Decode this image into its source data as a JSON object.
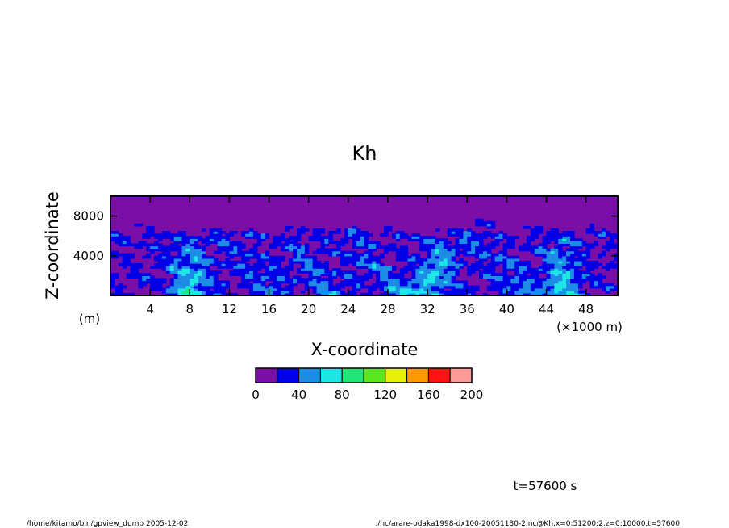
{
  "chart_data": {
    "type": "heatmap",
    "title": "Kh",
    "xlabel": "X-coordinate",
    "ylabel": "Z-coordinate",
    "x_unit": "(×1000 m)",
    "y_unit": "(m)",
    "xlim": [
      0,
      51.2
    ],
    "ylim": [
      0,
      10000
    ],
    "x_ticks": [
      "4",
      "8",
      "12",
      "16",
      "20",
      "24",
      "28",
      "32",
      "36",
      "40",
      "44",
      "48"
    ],
    "x_tick_values": [
      4,
      8,
      12,
      16,
      20,
      24,
      28,
      32,
      36,
      40,
      44,
      48
    ],
    "y_ticks": [
      "4000",
      "8000"
    ],
    "y_tick_values": [
      4000,
      8000
    ],
    "colorbar": {
      "levels": [
        0,
        20,
        40,
        60,
        80,
        100,
        120,
        140,
        160,
        180,
        200
      ],
      "labels": [
        "0",
        "40",
        "80",
        "120",
        "160",
        "200"
      ],
      "label_values": [
        0,
        40,
        80,
        120,
        160,
        200
      ],
      "colors": [
        "#7a0fa8",
        "#0000e6",
        "#1e8ce6",
        "#1ee6e6",
        "#1ee678",
        "#5ae61e",
        "#e6f00a",
        "#ff9900",
        "#ff1414",
        "#ff9a9a"
      ]
    },
    "annotation": "t=57600 s",
    "footer_left": "/home/kitamo/bin/gpview_dump  2005-12-02",
    "footer_right": "./nc/arare-odaka1998-dx100-20051130-2.nc@Kh,x=0:51200:2,z=0:10000,t=57600"
  }
}
